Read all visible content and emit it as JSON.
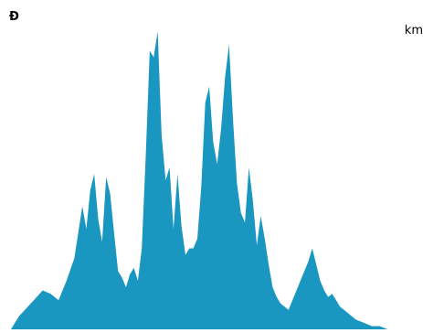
{
  "chart_data": {
    "type": "area",
    "title": "",
    "ylabel": "Ð",
    "xlabel": "",
    "x_unit": "km",
    "grid": false,
    "legend": "none",
    "ylim": [
      0,
      100
    ],
    "xlim": [
      0,
      100
    ],
    "series": [
      {
        "color": "#1997c0",
        "x": [
          0,
          2,
          5,
          8,
          10,
          12,
          14,
          16,
          18,
          19,
          20,
          21,
          22,
          23,
          24,
          25,
          26,
          27,
          28,
          29,
          30,
          31,
          32,
          33,
          34,
          35,
          36,
          37,
          38,
          39,
          40,
          41,
          42,
          43,
          44,
          45,
          46,
          47,
          48,
          49,
          50,
          51,
          52,
          53,
          54,
          55,
          56,
          57,
          58,
          59,
          60,
          61,
          62,
          63,
          64,
          65,
          66,
          67,
          68,
          69,
          70,
          71,
          72,
          73,
          74,
          75,
          76,
          77,
          78,
          79,
          80,
          81,
          82,
          83,
          85,
          87,
          89,
          91,
          93,
          95,
          97,
          100
        ],
        "y": [
          0,
          4,
          8,
          12,
          11,
          9,
          15,
          22,
          38,
          31,
          43,
          48,
          34,
          27,
          47,
          42,
          30,
          18,
          16,
          13,
          17,
          19,
          15,
          25,
          54,
          86,
          84,
          92,
          60,
          46,
          50,
          31,
          48,
          32,
          23,
          25,
          25,
          28,
          44,
          70,
          75,
          58,
          51,
          62,
          78,
          88,
          65,
          45,
          36,
          33,
          50,
          40,
          26,
          35,
          28,
          20,
          13,
          10,
          8,
          7,
          6,
          9,
          12,
          15,
          18,
          21,
          25,
          20,
          15,
          12,
          10,
          11,
          9,
          7,
          5,
          3,
          2,
          1,
          1,
          0,
          0,
          0
        ]
      }
    ]
  }
}
